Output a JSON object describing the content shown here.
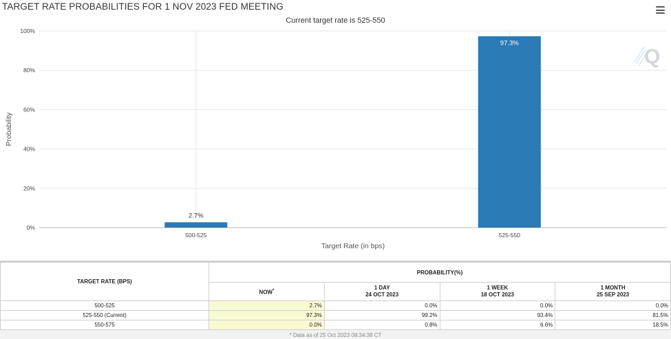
{
  "chart": {
    "title": "TARGET RATE PROBABILITIES FOR 1 NOV 2023 FED MEETING",
    "subtitle": "Current target rate is 525-550",
    "menu_icon": "hamburger-menu-icon",
    "watermark_icon": "q-logo-icon"
  },
  "chart_data": {
    "type": "bar",
    "categories": [
      "500-525",
      "525-550"
    ],
    "values": [
      2.7,
      97.3
    ],
    "data_labels": [
      "2.7%",
      "97.3%"
    ],
    "title": "TARGET RATE PROBABILITIES FOR 1 NOV 2023 FED MEETING",
    "subtitle": "Current target rate is 525-550",
    "xlabel": "Target Rate (in bps)",
    "ylabel": "Probability",
    "ylim": [
      0,
      100
    ],
    "yticks": [
      "0%",
      "20%",
      "40%",
      "60%",
      "80%",
      "100%"
    ],
    "grid": true,
    "bar_color": "#2a7ab5"
  },
  "table": {
    "rate_header": "TARGET RATE (BPS)",
    "prob_header": "PROBABILITY(%)",
    "columns": [
      {
        "line1": "NOW",
        "line2": "",
        "mark": "*"
      },
      {
        "line1": "1 DAY",
        "line2": "24 OCT 2023",
        "mark": ""
      },
      {
        "line1": "1 WEEK",
        "line2": "18 OCT 2023",
        "mark": ""
      },
      {
        "line1": "1 MONTH",
        "line2": "25 SEP 2023",
        "mark": ""
      }
    ],
    "rows": [
      {
        "rate": "500-525",
        "values": [
          "2.7%",
          "0.0%",
          "0.0%",
          "0.0%"
        ]
      },
      {
        "rate": "525-550 (Current)",
        "values": [
          "97.3%",
          "99.2%",
          "93.4%",
          "81.5%"
        ]
      },
      {
        "rate": "550-575",
        "values": [
          "0.0%",
          "0.8%",
          "6.6%",
          "18.5%"
        ]
      }
    ],
    "footnote": "* Data as of 25 Oct 2023 08:34:38 CT",
    "now_highlight_color": "#fafad2"
  }
}
